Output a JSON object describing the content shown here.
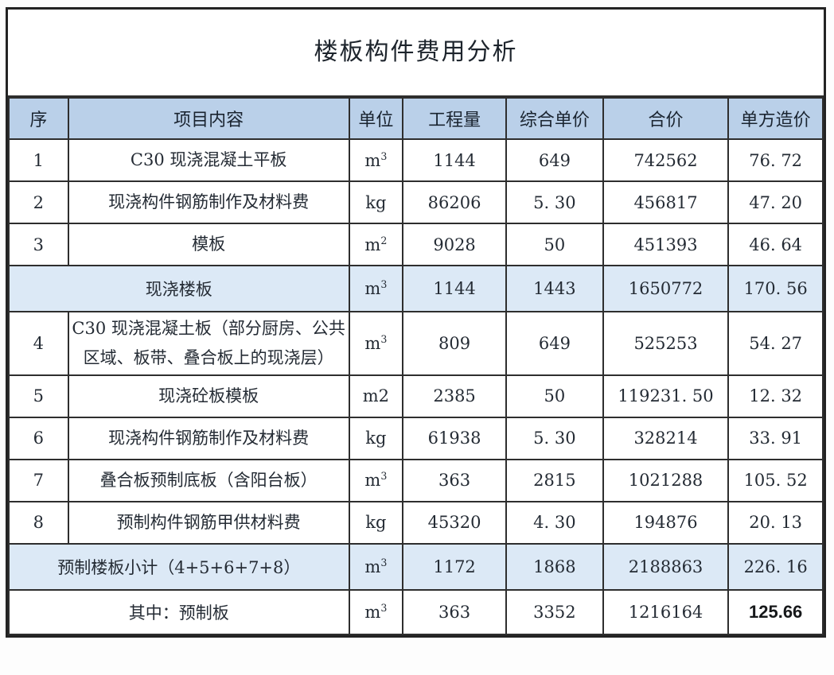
{
  "title": "楼板构件费用分析",
  "colors": {
    "header_bg": "#bad0e9",
    "subtotal_bg": "#dce9f6",
    "border": "#2e2e2e",
    "text": "#242b34"
  },
  "table": {
    "columns": [
      {
        "key": "seq",
        "label": "序"
      },
      {
        "key": "content",
        "label": "项目内容"
      },
      {
        "key": "unit",
        "label": "单位"
      },
      {
        "key": "qty",
        "label": "工程量"
      },
      {
        "key": "price",
        "label": "综合单价"
      },
      {
        "key": "total",
        "label": "合价"
      },
      {
        "key": "per",
        "label": "单方造价"
      }
    ],
    "rows": [
      {
        "type": "item",
        "no": "1",
        "content": "C30 现浇混凝土平板",
        "unit": "m",
        "unit_sup": "3",
        "qty": "1144",
        "price": "649",
        "total": "742562",
        "per": "76. 72"
      },
      {
        "type": "item",
        "no": "2",
        "content": "现浇构件钢筋制作及材料费",
        "unit": "kg",
        "unit_sup": "",
        "qty": "86206",
        "price": "5. 30",
        "total": "456817",
        "per": "47. 20"
      },
      {
        "type": "item",
        "no": "3",
        "content": "模板",
        "unit": "m",
        "unit_sup": "2",
        "qty": "9028",
        "price": "50",
        "total": "451393",
        "per": "46. 64"
      },
      {
        "type": "subtotal",
        "label": "现浇楼板",
        "unit": "m",
        "unit_sup": "3",
        "qty": "1144",
        "price": "1443",
        "total": "1650772",
        "per": "170. 56"
      },
      {
        "type": "item",
        "no": "4",
        "content": "C30 现浇混凝土板（部分厨房、公共区域、板带、叠合板上的现浇层）",
        "unit": "m",
        "unit_sup": "3",
        "qty": "809",
        "price": "649",
        "total": "525253",
        "per": "54. 27"
      },
      {
        "type": "item",
        "no": "5",
        "content": "现浇砼板模板",
        "unit": "m2",
        "unit_sup": "",
        "qty": "2385",
        "price": "50",
        "total": "119231. 50",
        "per": "12. 32"
      },
      {
        "type": "item",
        "no": "6",
        "content": "现浇构件钢筋制作及材料费",
        "unit": "kg",
        "unit_sup": "",
        "qty": "61938",
        "price": "5. 30",
        "total": "328214",
        "per": "33. 91"
      },
      {
        "type": "item",
        "no": "7",
        "content": "叠合板预制底板（含阳台板）",
        "unit": "m",
        "unit_sup": "3",
        "qty": "363",
        "price": "2815",
        "total": "1021288",
        "per": "105. 52"
      },
      {
        "type": "item",
        "no": "8",
        "content": "预制构件钢筋甲供材料费",
        "unit": "kg",
        "unit_sup": "",
        "qty": "45320",
        "price": "4. 30",
        "total": "194876",
        "per": "20. 13"
      },
      {
        "type": "subtotal",
        "label": "预制楼板小计（4+5+6+7+8）",
        "unit": "m",
        "unit_sup": "3",
        "qty": "1172",
        "price": "1868",
        "total": "2188863",
        "per": "226. 16"
      },
      {
        "type": "total",
        "label": "其中：预制板",
        "unit": "m",
        "unit_sup": "3",
        "qty": "363",
        "price": "3352",
        "total": "1216164",
        "per": "125.66"
      }
    ]
  }
}
